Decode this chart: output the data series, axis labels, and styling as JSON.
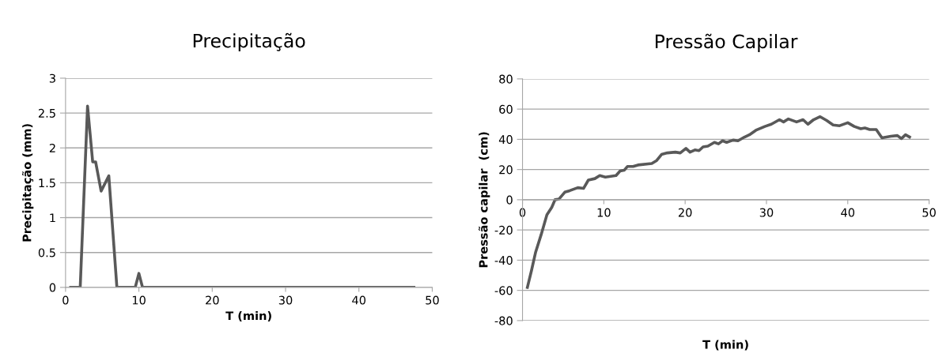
{
  "chart_data": [
    {
      "type": "line",
      "title": "Precipitação",
      "xlabel": "T (min)",
      "ylabel": "Precipitação (mm)",
      "x": [
        0.7,
        2.0,
        3.0,
        3.7,
        4.1,
        4.85,
        5.9,
        7.0,
        9.5,
        10.0,
        10.5,
        47.5
      ],
      "series": [
        {
          "color": "#595959",
          "values": [
            0,
            0,
            2.6,
            1.8,
            1.8,
            1.38,
            1.6,
            0,
            0,
            0.2,
            0,
            0
          ]
        }
      ],
      "xlim": [
        0,
        50
      ],
      "xticks": [
        0,
        10,
        20,
        30,
        40,
        50
      ],
      "ylim": [
        0,
        3
      ],
      "yticks": [
        0,
        0.5,
        1,
        1.5,
        2,
        2.5,
        3
      ],
      "grid": "y",
      "marker": "none",
      "line_style": "solid"
    },
    {
      "type": "line",
      "title": "Pressão Capilar",
      "xlabel": "T (min)",
      "ylabel": "Pressão capilar  (cm)",
      "x": [
        0.6,
        1.1,
        1.6,
        2.3,
        3.0,
        3.6,
        4.0,
        4.5,
        5.2,
        5.8,
        6.8,
        7.5,
        8.1,
        8.9,
        9.5,
        10.2,
        11.5,
        12.0,
        12.5,
        12.9,
        13.6,
        14.2,
        15.9,
        16.5,
        17.1,
        17.8,
        18.8,
        19.4,
        20.1,
        20.6,
        21.2,
        21.7,
        22.2,
        22.8,
        23.6,
        24.1,
        24.6,
        25.1,
        25.9,
        26.5,
        27.3,
        27.9,
        28.7,
        29.8,
        30.6,
        31.6,
        32.1,
        32.7,
        33.7,
        34.5,
        35.1,
        35.8,
        36.6,
        37.4,
        38.2,
        39.0,
        40.0,
        40.8,
        41.6,
        42.1,
        42.7,
        43.5,
        44.2,
        45.3,
        46.1,
        46.6,
        47.1,
        47.6
      ],
      "series": [
        {
          "color": "#595959",
          "values": [
            -58,
            -47,
            -35,
            -23,
            -10,
            -5,
            0,
            0.5,
            5,
            6,
            8,
            7.5,
            13,
            14,
            16,
            15,
            16,
            19,
            19.5,
            22,
            22,
            23,
            24,
            26,
            30,
            31,
            31.5,
            31,
            34,
            31.5,
            33,
            32.5,
            35,
            35.5,
            38,
            37,
            39,
            38,
            39.5,
            39,
            41.5,
            43,
            46,
            48.5,
            50,
            53,
            51.5,
            53.5,
            51.5,
            53,
            50,
            53,
            55,
            52.5,
            49.5,
            49,
            51,
            48.5,
            47,
            47.5,
            46.5,
            46.5,
            41,
            42,
            42.5,
            40.5,
            43,
            41.5
          ]
        }
      ],
      "xlim": [
        0,
        50
      ],
      "xticks": [
        0,
        10,
        20,
        30,
        40,
        50
      ],
      "ylim": [
        -80,
        80
      ],
      "yticks": [
        -80,
        -60,
        -40,
        -20,
        0,
        20,
        40,
        60,
        80
      ],
      "grid": "y",
      "marker": "none",
      "line_style": "solid"
    }
  ]
}
